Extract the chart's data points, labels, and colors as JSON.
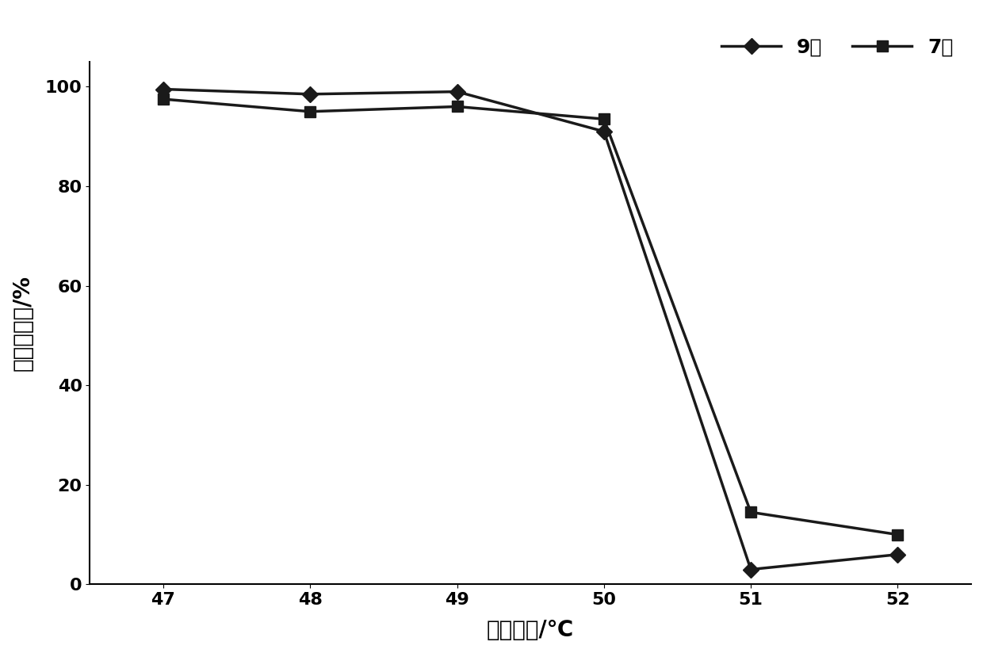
{
  "x": [
    47,
    48,
    49,
    50,
    51,
    52
  ],
  "series_9mei": [
    99.5,
    98.5,
    99.0,
    91.0,
    3.0,
    6.0
  ],
  "series_7xiang": [
    97.5,
    95.0,
    96.0,
    93.5,
    14.5,
    10.0
  ],
  "xlabel": "浸渍温度/℃",
  "ylabel": "蚕卵孵化率/%",
  "legend_9mei": "9芙",
  "legend_7xiang": "7湘",
  "ylim": [
    0,
    105
  ],
  "yticks": [
    0,
    20,
    40,
    60,
    80,
    100
  ],
  "xticks": [
    47,
    48,
    49,
    50,
    51,
    52
  ],
  "line_color": "#1a1a1a",
  "bg_color": "#ffffff",
  "title_fontsize": 18,
  "label_fontsize": 20,
  "tick_fontsize": 16,
  "legend_fontsize": 18
}
